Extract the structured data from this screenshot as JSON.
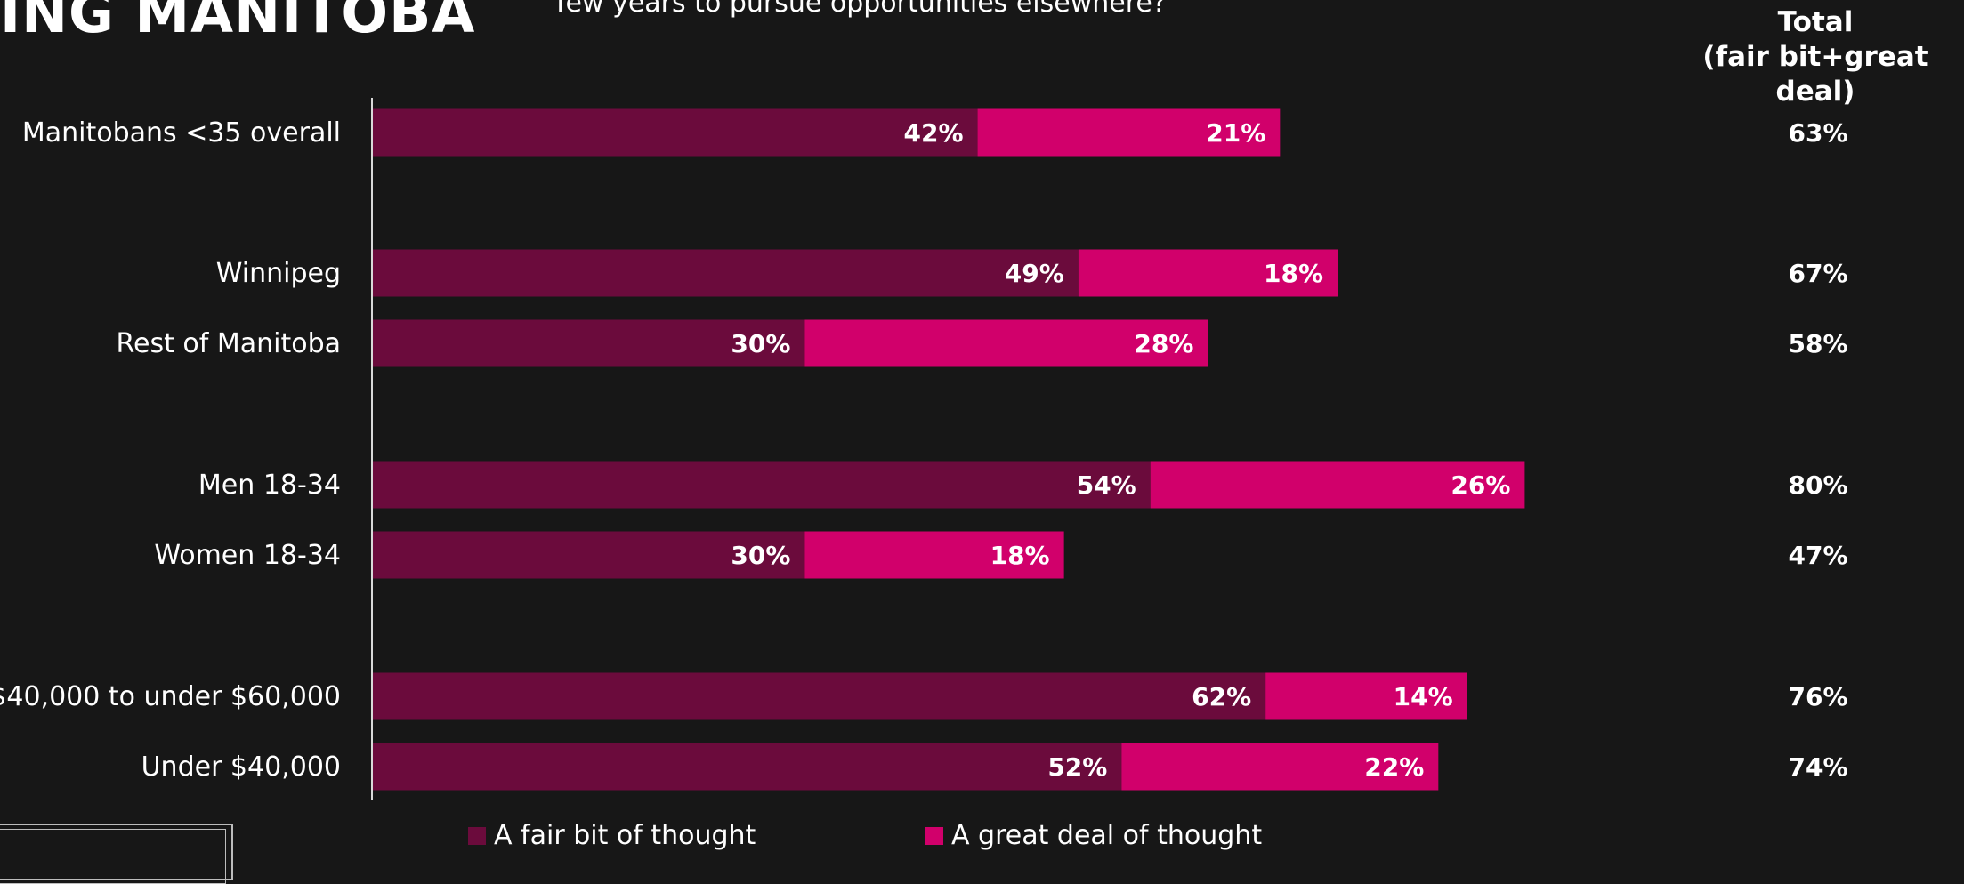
{
  "header": {
    "title": "ING MANITOBA",
    "question": "few years to pursue opportunities elsewhere?",
    "total_header_line1": "Total",
    "total_header_line2": "(fair bit+great deal)"
  },
  "legend": {
    "fair_bit": "A fair bit of thought",
    "great_deal": "A great deal of thought"
  },
  "colors": {
    "background": "#171717",
    "fair_bit": "#6b0b3c",
    "great_deal": "#d1006b",
    "axis": "#d9d9d9",
    "text": "#ffffff"
  },
  "chart_data": {
    "type": "bar",
    "orientation": "horizontal",
    "stacked": true,
    "categories": [
      "Manitobans <35 overall",
      "Winnipeg",
      "Rest of Manitoba",
      "Men 18-34",
      "Women 18-34",
      "$40,000 to under $60,000",
      "Under $40,000"
    ],
    "groups": [
      [
        0
      ],
      [
        1,
        2
      ],
      [
        3,
        4
      ],
      [
        5,
        6
      ]
    ],
    "series": [
      {
        "name": "A fair bit of thought",
        "values": [
          42,
          49,
          30,
          54,
          30,
          62,
          52
        ]
      },
      {
        "name": "A great deal of thought",
        "values": [
          21,
          18,
          28,
          26,
          18,
          14,
          22
        ]
      }
    ],
    "value_labels": {
      "fair_bit": [
        "42%",
        "49%",
        "30%",
        "54%",
        "30%",
        "62%",
        "52%"
      ],
      "great_deal": [
        "21%",
        "18%",
        "28%",
        "26%",
        "18%",
        "14%",
        "22%"
      ]
    },
    "totals": [
      "63%",
      "67%",
      "58%",
      "80%",
      "47%",
      "76%",
      "74%"
    ],
    "total_values": [
      63,
      67,
      58,
      80,
      47,
      76,
      74
    ],
    "xlim": [
      0,
      100
    ],
    "grid": false,
    "legend_position": "bottom"
  }
}
